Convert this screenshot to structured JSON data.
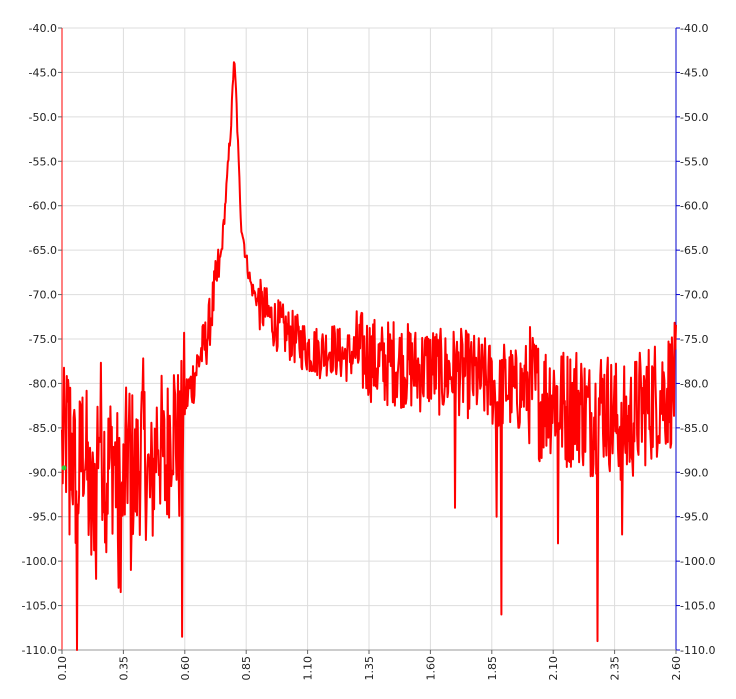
{
  "chart_data": {
    "type": "line",
    "title": "",
    "xlabel": "",
    "ylabel": "",
    "xlim": [
      0.1,
      2.6
    ],
    "ylim": [
      -110,
      -40
    ],
    "x_ticks": [
      "0.10",
      "0.35",
      "0.60",
      "0.85",
      "1.10",
      "1.35",
      "1.60",
      "1.85",
      "2.10",
      "2.35",
      "2.60"
    ],
    "y_ticks_left": [
      "-40.0",
      "-45.0",
      "-50.0",
      "-55.0",
      "-60.0",
      "-65.0",
      "-70.0",
      "-75.0",
      "-80.0",
      "-85.0",
      "-90.0",
      "-95.0",
      "-100.0",
      "-105.0",
      "-110.0"
    ],
    "y_ticks_right": [
      "-40.0",
      "-45.0",
      "-50.0",
      "-55.0",
      "-60.0",
      "-65.0",
      "-70.0",
      "-75.0",
      "-80.0",
      "-85.0",
      "-90.0",
      "-95.0",
      "-100.0",
      "-105.0",
      "-110.0"
    ],
    "grid": true,
    "colors": {
      "series": "#ff0000",
      "left_axis": "#ff0000",
      "right_axis": "#0000cc",
      "grid": "#dddddd",
      "marker": "#33cc33"
    },
    "series": [
      {
        "name": "",
        "color": "#ff0000",
        "x": [
          0.1,
          0.13,
          0.16,
          0.19,
          0.22,
          0.25,
          0.28,
          0.31,
          0.34,
          0.37,
          0.4,
          0.43,
          0.46,
          0.49,
          0.52,
          0.55,
          0.58,
          0.6,
          0.63,
          0.66,
          0.69,
          0.72,
          0.75,
          0.77,
          0.79,
          0.8,
          0.81,
          0.82,
          0.83,
          0.85,
          0.87,
          0.9,
          0.93,
          0.96,
          1.0,
          1.05,
          1.1,
          1.15,
          1.2,
          1.25,
          1.3,
          1.35,
          1.4,
          1.45,
          1.5,
          1.55,
          1.6,
          1.65,
          1.7,
          1.75,
          1.8,
          1.85,
          1.88,
          1.9,
          1.95,
          2.0,
          2.05,
          2.1,
          2.15,
          2.2,
          2.25,
          2.28,
          2.3,
          2.35,
          2.4,
          2.45,
          2.5,
          2.55,
          2.6
        ],
        "y": [
          -88,
          -85,
          -92,
          -86,
          -96,
          -84,
          -90,
          -88,
          -95,
          -87,
          -91,
          -86,
          -93,
          -85,
          -90,
          -83,
          -88,
          -82,
          -80,
          -77,
          -75,
          -70,
          -65,
          -58,
          -50,
          -43.5,
          -48,
          -56,
          -62,
          -66,
          -69,
          -71,
          -72,
          -73,
          -74,
          -75,
          -76,
          -76.5,
          -76,
          -77,
          -76.5,
          -77,
          -78,
          -77.5,
          -78,
          -78.5,
          -78,
          -79,
          -78.5,
          -79,
          -79.5,
          -80,
          -82,
          -80,
          -81,
          -80,
          -82,
          -81,
          -83,
          -82,
          -84,
          -83,
          -82,
          -84,
          -85,
          -83,
          -82,
          -81,
          -80
        ],
        "dips": [
          [
            0.13,
            -97
          ],
          [
            0.16,
            -110
          ],
          [
            0.24,
            -102
          ],
          [
            0.28,
            -99
          ],
          [
            0.33,
            -103
          ],
          [
            0.38,
            -101
          ],
          [
            0.59,
            -108.5
          ],
          [
            1.7,
            -94
          ],
          [
            1.87,
            -95
          ],
          [
            1.89,
            -106
          ],
          [
            2.12,
            -98
          ],
          [
            2.28,
            -109
          ],
          [
            2.38,
            -97
          ]
        ]
      }
    ],
    "marker_point": {
      "x": 0.1,
      "y": -89.5
    }
  }
}
